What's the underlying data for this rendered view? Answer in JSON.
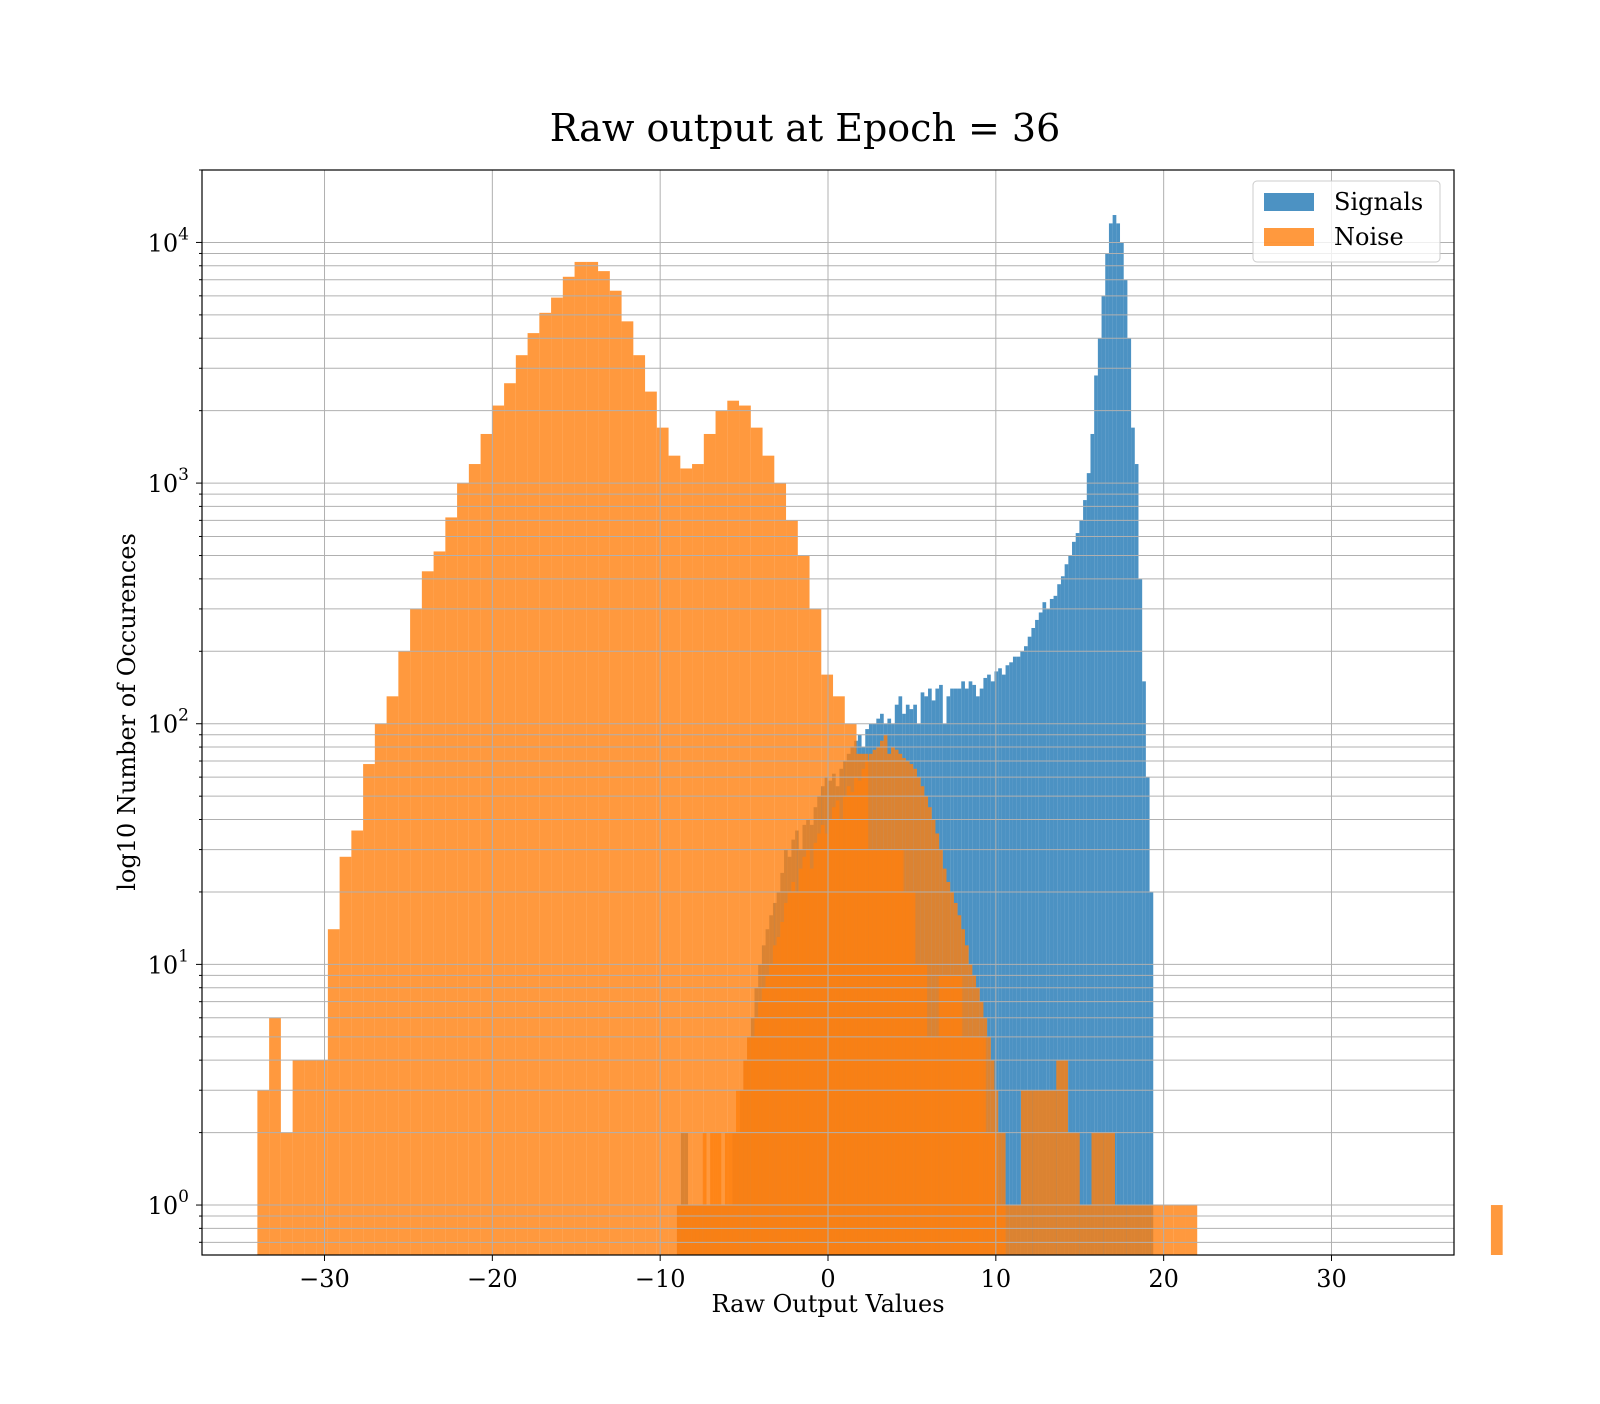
{
  "chart_data": {
    "type": "bar",
    "histogram": true,
    "title": "Raw output at Epoch = 36",
    "xlabel": "Raw Output Values",
    "ylabel": "log10 Number of Occurences",
    "xlim": [
      -37.3,
      37.3
    ],
    "ylim": [
      0.62,
      20000
    ],
    "yscale": "log",
    "grid": true,
    "legend_position": "top-right",
    "x_ticks": [
      "−30",
      "−20",
      "−10",
      "0",
      "10",
      "20",
      "30"
    ],
    "x_tick_values": [
      -30,
      -20,
      -10,
      0,
      10,
      20,
      30
    ],
    "y_ticks": [
      {
        "base": "10",
        "exp": "0",
        "value": 1
      },
      {
        "base": "10",
        "exp": "1",
        "value": 10
      },
      {
        "base": "10",
        "exp": "2",
        "value": 100
      },
      {
        "base": "10",
        "exp": "3",
        "value": 1000
      },
      {
        "base": "10",
        "exp": "4",
        "value": 10000
      }
    ],
    "series": [
      {
        "name": "Signals",
        "color": "#1f77b4",
        "opacity": 0.8,
        "bin_start": -9.0,
        "bin_width": 0.22,
        "counts": [
          1,
          2,
          2,
          1,
          1,
          1,
          1,
          1,
          1,
          1,
          1,
          1,
          1,
          1,
          1,
          2,
          2,
          3,
          4,
          5,
          6,
          8,
          10,
          12,
          14,
          16,
          18,
          20,
          24,
          30,
          28,
          33,
          36,
          30,
          38,
          40,
          38,
          45,
          50,
          55,
          60,
          58,
          62,
          55,
          65,
          70,
          75,
          80,
          85,
          90,
          80,
          95,
          100,
          100,
          105,
          110,
          100,
          105,
          100,
          120,
          130,
          110,
          120,
          115,
          120,
          100,
          135,
          130,
          140,
          125,
          140,
          145,
          100,
          130,
          140,
          140,
          140,
          150,
          140,
          150,
          145,
          130,
          140,
          155,
          160,
          150,
          165,
          170,
          160,
          175,
          180,
          190,
          190,
          200,
          210,
          230,
          250,
          270,
          290,
          320,
          300,
          330,
          340,
          380,
          410,
          460,
          500,
          570,
          620,
          700,
          850,
          1100,
          1600,
          2800,
          4000,
          6000,
          9000,
          12000,
          13000,
          12000,
          10000,
          7000,
          4000,
          1700,
          1200,
          400,
          150,
          60,
          20
        ]
      },
      {
        "name": "Noise",
        "color": "#ff7f0e",
        "opacity": 0.8,
        "bin_start": -34.0,
        "bin_width": 0.7,
        "counts": [
          3,
          6,
          2,
          4,
          4,
          4,
          14,
          28,
          36,
          68,
          100,
          130,
          200,
          300,
          430,
          520,
          720,
          1000,
          1200,
          1600,
          2100,
          2600,
          3400,
          4200,
          5100,
          5900,
          7200,
          8300,
          8300,
          7600,
          6300,
          4700,
          3400,
          2400,
          1700,
          1300,
          1150,
          1200,
          1600,
          2000,
          2200,
          2100,
          1700,
          1300,
          1000,
          700,
          500,
          300,
          160,
          130,
          100,
          75,
          30,
          30,
          30,
          20,
          10,
          5,
          9,
          9,
          5,
          5,
          2,
          1,
          1,
          3,
          3,
          3,
          4,
          2,
          1,
          2,
          2,
          1,
          1,
          1,
          1,
          1,
          1,
          1,
          0,
          0,
          0,
          0,
          0,
          0,
          0,
          0,
          0,
          0,
          0,
          0,
          0,
          0,
          0,
          0,
          0,
          0,
          0,
          0,
          0,
          0,
          0,
          0,
          0,
          1
        ]
      },
      {
        "name": "",
        "color": "#ff7f0e",
        "opacity": 0.8,
        "bin_start": -9.0,
        "bin_width": 0.22,
        "counts": [
          1,
          1,
          1,
          1,
          1,
          1,
          1,
          2,
          1,
          2,
          2,
          2,
          1,
          2,
          2,
          2,
          3,
          3,
          4,
          5,
          5,
          6,
          7,
          8,
          9,
          10,
          12,
          13,
          15,
          18,
          20,
          22,
          20,
          25,
          28,
          30,
          25,
          32,
          35,
          38,
          35,
          40,
          45,
          48,
          40,
          50,
          55,
          52,
          60,
          58,
          65,
          70,
          75,
          78,
          80,
          85,
          90,
          75,
          80,
          78,
          75,
          72,
          70,
          68,
          65,
          60,
          55,
          50,
          45,
          40,
          35,
          30,
          25,
          22,
          20,
          18,
          16,
          14,
          12,
          10,
          9,
          8,
          7,
          6,
          5,
          4,
          3,
          2,
          2
        ]
      }
    ]
  }
}
